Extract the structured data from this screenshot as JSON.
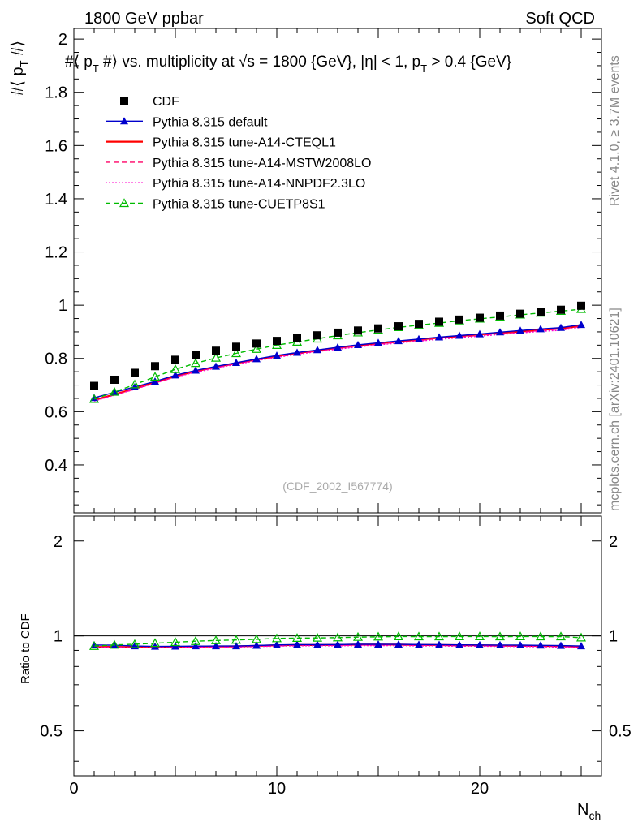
{
  "header": {
    "left": "1800 GeV ppbar",
    "right": "Soft QCD"
  },
  "side_labels": {
    "rivet": "Rivet 4.1.0, ≥ 3.7M events",
    "mcplots": "mcplots.cern.ch [arXiv:2401.10621]"
  },
  "chart_data": [
    {
      "type": "line",
      "title": "#⟨ p_T #⟩ vs. multiplicity at √s = 1800 {GeV}, |η| < 1, p_T > 0.4 {GeV}",
      "title_parts": [
        "#⟨ p",
        "T",
        " #⟩ vs. multiplicity at ",
        "√",
        "s = 1800 {GeV}, |η| < 1, p",
        "T",
        " > 0.4 {GeV}"
      ],
      "ylabel": "#⟨ p_T #⟩",
      "ylabel_parts": [
        "#⟨ p",
        "T",
        " #⟩"
      ],
      "xlabel": "N_ch",
      "xlabel_parts": [
        "N",
        "ch"
      ],
      "watermark": "(CDF_2002_I567774)",
      "xlim": [
        0,
        26
      ],
      "ylim": [
        0.22,
        2.04
      ],
      "x_ticks": [
        0,
        10,
        20
      ],
      "y_ticks": [
        0.4,
        0.6,
        0.8,
        1,
        1.2,
        1.4,
        1.6,
        1.8,
        2
      ],
      "y_tick_labels": [
        "0.4",
        "0.6",
        "0.8",
        "1",
        "1.2",
        "1.4",
        "1.6",
        "1.8",
        "2"
      ],
      "x": [
        1,
        2,
        3,
        4,
        5,
        6,
        7,
        8,
        9,
        10,
        11,
        12,
        13,
        14,
        15,
        16,
        17,
        18,
        19,
        20,
        21,
        22,
        23,
        24,
        25
      ],
      "series": [
        {
          "name": "CDF",
          "color": "#000000",
          "style": "markers",
          "marker": "square",
          "values": [
            0.697,
            0.72,
            0.746,
            0.771,
            0.795,
            0.813,
            0.829,
            0.844,
            0.856,
            0.866,
            0.876,
            0.887,
            0.897,
            0.905,
            0.913,
            0.921,
            0.93,
            0.938,
            0.946,
            0.953,
            0.961,
            0.968,
            0.976,
            0.983,
            0.998
          ]
        },
        {
          "name": "Pythia 8.315 default",
          "color": "#0000cc",
          "style": "solid",
          "marker": "triangle",
          "values": [
            0.652,
            0.673,
            0.693,
            0.714,
            0.737,
            0.755,
            0.77,
            0.784,
            0.798,
            0.811,
            0.822,
            0.832,
            0.842,
            0.851,
            0.859,
            0.866,
            0.873,
            0.88,
            0.886,
            0.892,
            0.899,
            0.905,
            0.911,
            0.916,
            0.927
          ]
        },
        {
          "name": "Pythia 8.315 tune-A14-CTEQL1",
          "color": "#ff0000",
          "style": "solid",
          "marker": "none",
          "values": [
            0.643,
            0.665,
            0.687,
            0.71,
            0.733,
            0.752,
            0.768,
            0.782,
            0.796,
            0.809,
            0.82,
            0.83,
            0.84,
            0.849,
            0.857,
            0.864,
            0.871,
            0.878,
            0.884,
            0.89,
            0.896,
            0.901,
            0.907,
            0.913,
            0.922
          ]
        },
        {
          "name": "Pythia 8.315 tune-A14-MSTW2008LO",
          "color": "#ff0066",
          "style": "dashed",
          "marker": "none",
          "values": [
            0.641,
            0.663,
            0.685,
            0.708,
            0.731,
            0.75,
            0.766,
            0.78,
            0.794,
            0.806,
            0.817,
            0.828,
            0.838,
            0.846,
            0.854,
            0.861,
            0.868,
            0.875,
            0.881,
            0.887,
            0.893,
            0.899,
            0.905,
            0.911,
            0.92
          ]
        },
        {
          "name": "Pythia 8.315 tune-A14-NNPDF2.3LO",
          "color": "#ff00cc",
          "style": "dotted",
          "marker": "none",
          "values": [
            0.64,
            0.662,
            0.684,
            0.707,
            0.73,
            0.748,
            0.764,
            0.778,
            0.792,
            0.804,
            0.815,
            0.826,
            0.835,
            0.843,
            0.851,
            0.858,
            0.865,
            0.872,
            0.878,
            0.884,
            0.89,
            0.896,
            0.902,
            0.906,
            0.917
          ]
        },
        {
          "name": "Pythia 8.315 tune-CUETP8S1",
          "color": "#00bb00",
          "style": "dashed",
          "marker": "triangle-open",
          "values": [
            0.647,
            0.674,
            0.702,
            0.731,
            0.759,
            0.782,
            0.802,
            0.819,
            0.835,
            0.85,
            0.862,
            0.874,
            0.886,
            0.897,
            0.907,
            0.917,
            0.925,
            0.933,
            0.942,
            0.949,
            0.956,
            0.964,
            0.971,
            0.978,
            0.985
          ]
        }
      ]
    },
    {
      "type": "line",
      "ylabel": "Ratio to CDF",
      "xlabel": "N_ch",
      "xlim": [
        0,
        26
      ],
      "ylim": [
        0.36,
        2.4
      ],
      "yscale": "log",
      "y_ticks": [
        0.5,
        1,
        2
      ],
      "y_tick_labels": [
        "0.5",
        "1",
        "2"
      ],
      "x_ticks": [
        0,
        10,
        20
      ],
      "x_tick_labels": [
        "0",
        "10",
        "20"
      ],
      "reference": 1,
      "note": "each ratio series = simulation / CDF, computed from the values above"
    }
  ]
}
